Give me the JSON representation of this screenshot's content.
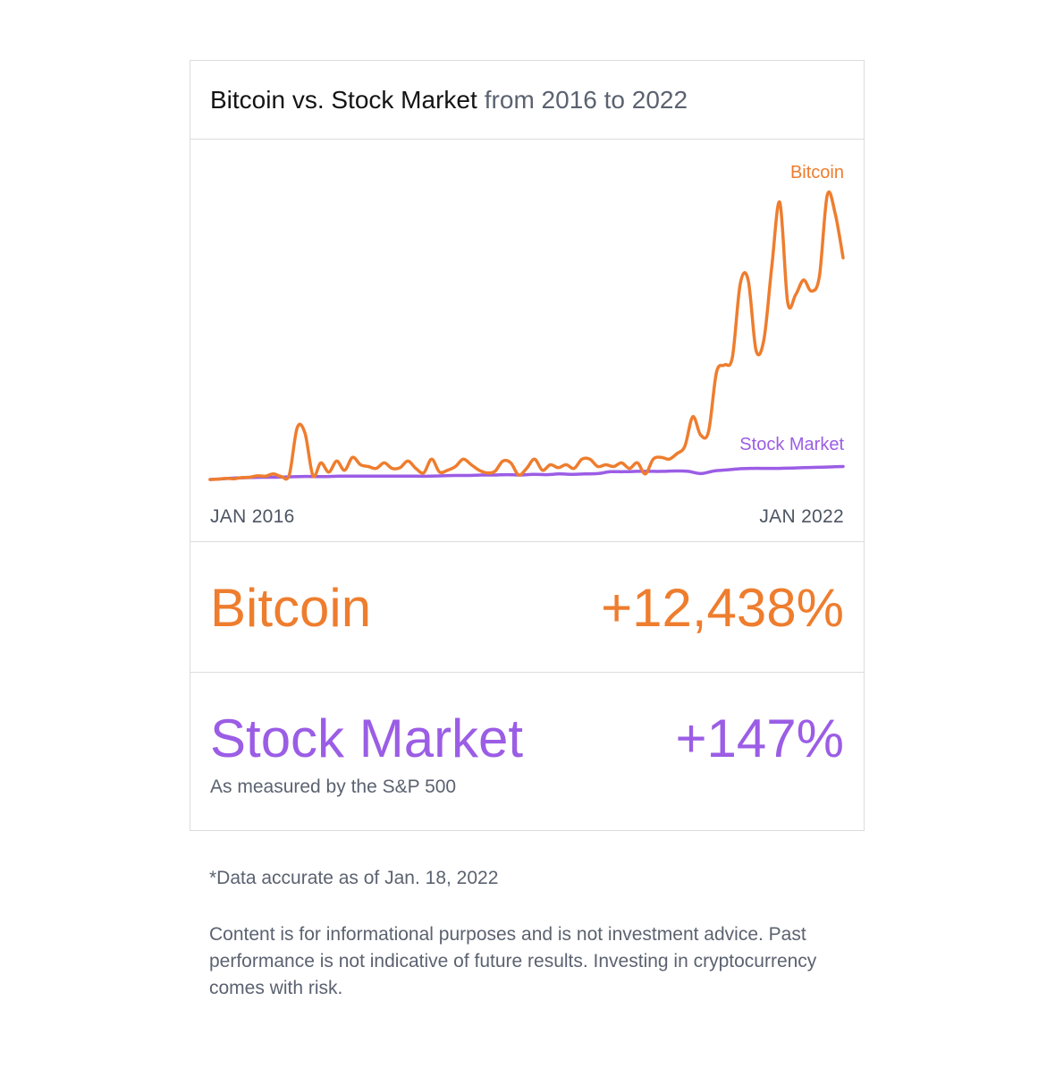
{
  "header": {
    "title_main": "Bitcoin vs. Stock Market",
    "title_sub": "from 2016 to 2022"
  },
  "colors": {
    "bitcoin": "#ee7d2e",
    "stock_market": "#9b5de5",
    "text_muted": "#5b6270",
    "border": "#dcdcdc"
  },
  "chart_data": {
    "type": "line",
    "x_start_label": "JAN 2016",
    "x_end_label": "JAN 2022",
    "grid": false,
    "series": [
      {
        "name": "Bitcoin",
        "values": [
          0,
          0.1,
          0.3,
          0.2,
          0.5,
          0.6,
          1.0,
          0.9,
          1.5,
          0.8,
          1.2,
          14.0,
          12.5,
          1.0,
          4.5,
          2.0,
          5.0,
          2.5,
          6.0,
          4.0,
          3.5,
          3.0,
          4.5,
          3.0,
          3.2,
          5.0,
          3.0,
          1.8,
          5.5,
          2.0,
          2.5,
          3.5,
          5.5,
          4.0,
          2.5,
          1.8,
          2.2,
          5.0,
          4.5,
          1.2,
          3.0,
          5.5,
          2.5,
          4.0,
          3.2,
          4.0,
          3.0,
          5.5,
          5.5,
          3.5,
          4.0,
          3.5,
          4.5,
          3.0,
          4.5,
          1.5,
          5.5,
          6.0,
          5.5,
          7.0,
          9.0,
          17.0,
          12.0,
          13.0,
          29.0,
          31.0,
          33.0,
          53.0,
          54.0,
          35.0,
          38.0,
          58.0,
          75.0,
          48.0,
          50.0,
          54.0,
          51.0,
          55.0,
          77.0,
          72.0,
          60.0
        ]
      },
      {
        "name": "Stock Market",
        "values": [
          0,
          0.2,
          0.4,
          0.5,
          0.6,
          0.6,
          0.7,
          0.8,
          0.8,
          0.8,
          0.9,
          0.9,
          0.9,
          0.9,
          0.9,
          0.9,
          0.9,
          0.9,
          1.0,
          1.1,
          1.1,
          1.2,
          1.2,
          1.3,
          1.2,
          1.4,
          1.3,
          1.5,
          1.4,
          1.5,
          1.6,
          2.1,
          2.1,
          2.2,
          2.2,
          2.2,
          2.3,
          2.2,
          1.6,
          2.3,
          2.6,
          2.9,
          3.0,
          3.0,
          3.0,
          3.1,
          3.2,
          3.3,
          3.4,
          3.5
        ]
      }
    ]
  },
  "stats": {
    "bitcoin": {
      "label": "Bitcoin",
      "value": "+12,438%"
    },
    "stock_market": {
      "label": "Stock Market",
      "value": "+147%",
      "note": "As measured by the S&P 500"
    }
  },
  "footnote": "*Data accurate as of Jan. 18, 2022",
  "disclaimer": "Content is for informational purposes and is not investment advice. Past performance is not indicative of future results. Investing in cryptocurrency comes with risk."
}
